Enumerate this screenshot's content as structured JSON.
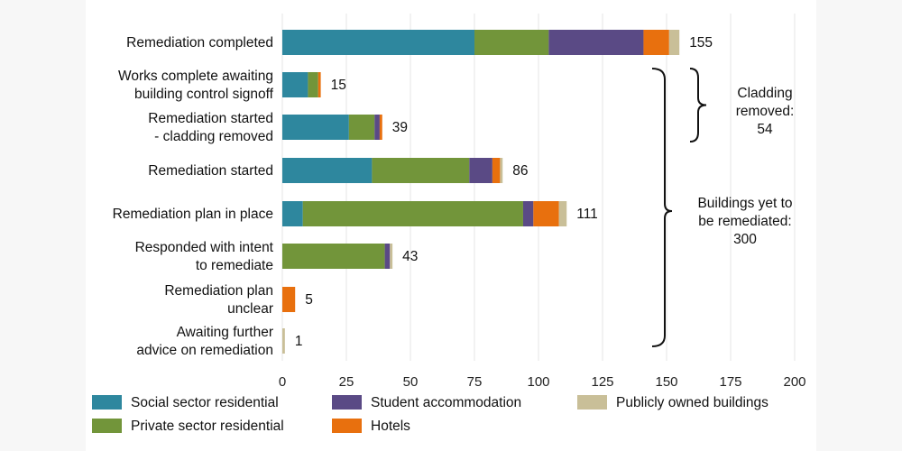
{
  "chart_data": {
    "type": "bar",
    "orientation": "horizontal",
    "stacked": true,
    "categories": [
      [
        "Remediation completed"
      ],
      [
        "Works complete awaiting",
        "building control signoff"
      ],
      [
        "Remediation started",
        "- cladding removed"
      ],
      [
        "Remediation started"
      ],
      [
        "Remediation plan in place"
      ],
      [
        "Responded with intent",
        "to remediate"
      ],
      [
        "Remediation plan",
        "unclear"
      ],
      [
        "Awaiting further",
        "advice on remediation"
      ]
    ],
    "totals": [
      155,
      15,
      39,
      86,
      111,
      43,
      5,
      1
    ],
    "series": [
      {
        "name": "Social sector residential",
        "color": "#2e879e",
        "values": [
          75,
          10,
          26,
          35,
          8,
          0,
          0,
          0
        ]
      },
      {
        "name": "Private sector residential",
        "color": "#72953a",
        "values": [
          29,
          4,
          10,
          38,
          86,
          40,
          0,
          0
        ]
      },
      {
        "name": "Student accommodation",
        "color": "#5a4a85",
        "values": [
          37,
          0,
          2,
          9,
          4,
          2,
          0,
          0
        ]
      },
      {
        "name": "Hotels",
        "color": "#e8700e",
        "values": [
          10,
          1,
          1,
          3,
          10,
          0,
          5,
          0
        ]
      },
      {
        "name": "Publicly owned buildings",
        "color": "#c9bf98",
        "values": [
          4,
          0,
          0,
          1,
          3,
          1,
          0,
          1
        ]
      }
    ],
    "xlim": [
      0,
      200
    ],
    "xticks": [
      0,
      25,
      50,
      75,
      100,
      125,
      150,
      175,
      200
    ],
    "grid": "vertical",
    "legend": "bottom",
    "annotations": [
      {
        "text": [
          "Cladding",
          "removed:",
          "54"
        ],
        "spans": "Works complete awaiting building control signoff to Remediation started - cladding removed"
      },
      {
        "text": [
          "Buildings yet to",
          "be remediated:",
          "300"
        ],
        "spans": "Works complete awaiting building control signoff to Awaiting further advice on remediation"
      }
    ]
  }
}
